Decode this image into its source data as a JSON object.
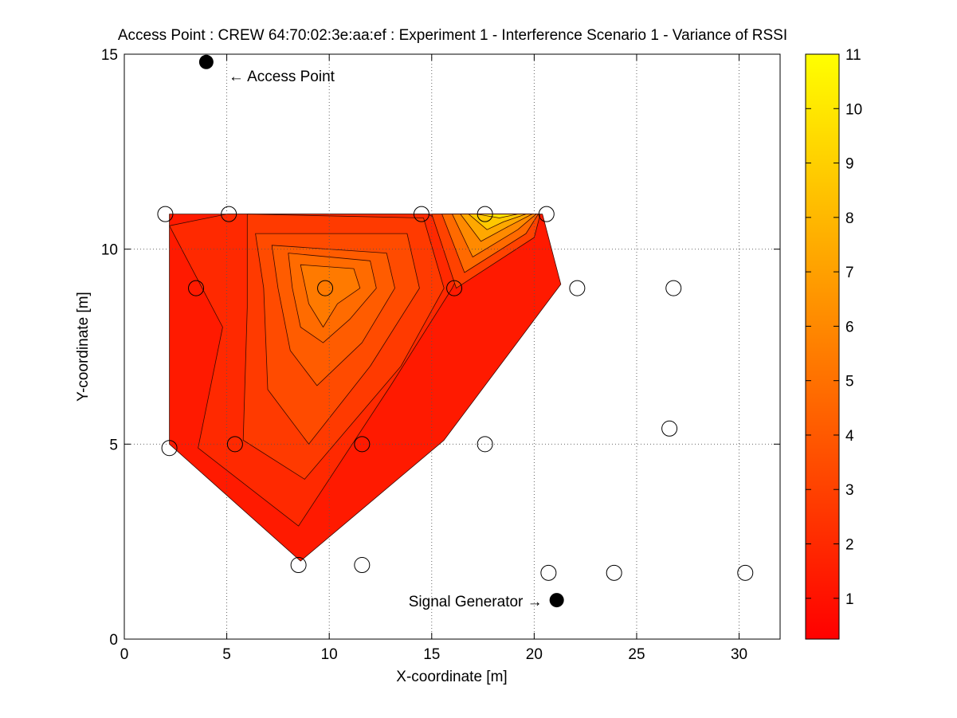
{
  "chart_data": {
    "type": "contour",
    "title": "Access Point : CREW 64:70:02:3e:aa:ef : Experiment 1 - Interference Scenario 1 - Variance of RSSI",
    "xlabel": "X-coordinate [m]",
    "ylabel": "Y-coordinate [m]",
    "xlim": [
      0,
      32
    ],
    "ylim": [
      0,
      15
    ],
    "x_ticks": [
      0,
      5,
      10,
      15,
      20,
      25,
      30
    ],
    "y_ticks": [
      0,
      5,
      10,
      15
    ],
    "grid": true,
    "colormap": "autumn",
    "colorbar": {
      "min": 0.25,
      "max": 11,
      "ticks": [
        1,
        2,
        3,
        4,
        5,
        6,
        7,
        8,
        9,
        10,
        11
      ],
      "low_color": "#ff0000",
      "high_color": "#ffff00"
    },
    "measurement_points": [
      {
        "x": 2.0,
        "y": 10.9
      },
      {
        "x": 5.1,
        "y": 10.9
      },
      {
        "x": 14.5,
        "y": 10.9
      },
      {
        "x": 17.6,
        "y": 10.9
      },
      {
        "x": 20.6,
        "y": 10.9
      },
      {
        "x": 3.5,
        "y": 9.0
      },
      {
        "x": 9.8,
        "y": 9.0
      },
      {
        "x": 16.1,
        "y": 9.0
      },
      {
        "x": 22.1,
        "y": 9.0
      },
      {
        "x": 26.8,
        "y": 9.0
      },
      {
        "x": 2.2,
        "y": 4.9
      },
      {
        "x": 5.4,
        "y": 5.0
      },
      {
        "x": 11.6,
        "y": 5.0
      },
      {
        "x": 17.6,
        "y": 5.0
      },
      {
        "x": 26.6,
        "y": 5.4
      },
      {
        "x": 8.5,
        "y": 1.9
      },
      {
        "x": 11.6,
        "y": 1.9
      },
      {
        "x": 20.7,
        "y": 1.7
      },
      {
        "x": 23.9,
        "y": 1.7
      },
      {
        "x": 30.3,
        "y": 1.7
      }
    ],
    "access_point": {
      "x": 4.0,
      "y": 14.8,
      "label": "← Access Point"
    },
    "signal_generator": {
      "x": 21.1,
      "y": 1.0,
      "label": "Signal Generator →"
    },
    "contour_regions": [
      {
        "level": 1.0,
        "color": "#ff1a00",
        "points": [
          [
            2.2,
            10.9
          ],
          [
            20.4,
            10.9
          ],
          [
            21.3,
            9.1
          ],
          [
            15.6,
            5.1
          ],
          [
            8.6,
            2.0
          ],
          [
            2.2,
            5.0
          ]
        ]
      },
      {
        "level": 1.8,
        "color": "#ff2900",
        "points": [
          [
            2.2,
            10.6
          ],
          [
            5.0,
            10.9
          ],
          [
            14.8,
            10.9
          ],
          [
            17.2,
            10.3
          ],
          [
            16.0,
            9.0
          ],
          [
            13.0,
            6.5
          ],
          [
            8.5,
            2.9
          ],
          [
            3.6,
            4.9
          ],
          [
            4.8,
            8.0
          ]
        ]
      },
      {
        "level": 2.6,
        "color": "#ff3a00",
        "points": [
          [
            6.0,
            10.9
          ],
          [
            14.6,
            10.8
          ],
          [
            15.6,
            9.0
          ],
          [
            13.5,
            7.0
          ],
          [
            8.8,
            4.1
          ],
          [
            5.8,
            5.1
          ],
          [
            6.0,
            8.5
          ]
        ]
      },
      {
        "level": 3.4,
        "color": "#ff4b00",
        "points": [
          [
            6.4,
            10.4
          ],
          [
            13.8,
            10.4
          ],
          [
            14.4,
            9.0
          ],
          [
            12.0,
            7.0
          ],
          [
            9.0,
            5.0
          ],
          [
            7.0,
            6.4
          ],
          [
            6.8,
            9.0
          ]
        ]
      },
      {
        "level": 4.2,
        "color": "#ff5c00",
        "points": [
          [
            7.2,
            10.1
          ],
          [
            12.8,
            9.9
          ],
          [
            13.2,
            9.0
          ],
          [
            11.6,
            7.6
          ],
          [
            9.4,
            6.5
          ],
          [
            8.1,
            7.4
          ],
          [
            7.5,
            9.0
          ]
        ]
      },
      {
        "level": 5.0,
        "color": "#ff6b00",
        "points": [
          [
            8.0,
            9.9
          ],
          [
            12.0,
            9.7
          ],
          [
            12.3,
            9.0
          ],
          [
            11.0,
            8.2
          ],
          [
            9.7,
            7.6
          ],
          [
            8.6,
            8.0
          ],
          [
            8.2,
            9.0
          ]
        ]
      },
      {
        "level": 5.8,
        "color": "#ff7a00",
        "points": [
          [
            8.6,
            9.6
          ],
          [
            11.2,
            9.5
          ],
          [
            11.5,
            9.0
          ],
          [
            10.4,
            8.6
          ],
          [
            9.7,
            8.0
          ],
          [
            9.0,
            8.6
          ]
        ]
      },
      {
        "level": 3.0,
        "color": "#ff4200",
        "points": [
          [
            15.0,
            10.9
          ],
          [
            20.3,
            10.9
          ],
          [
            20.0,
            10.3
          ],
          [
            16.2,
            9.0
          ]
        ]
      },
      {
        "level": 5.0,
        "color": "#ff6a00",
        "points": [
          [
            15.5,
            10.9
          ],
          [
            20.2,
            10.9
          ],
          [
            19.6,
            10.4
          ],
          [
            16.6,
            9.4
          ]
        ]
      },
      {
        "level": 6.5,
        "color": "#ff8a00",
        "points": [
          [
            16.0,
            10.9
          ],
          [
            20.1,
            10.9
          ],
          [
            19.2,
            10.5
          ],
          [
            17.0,
            9.8
          ]
        ]
      },
      {
        "level": 8.0,
        "color": "#ffa800",
        "points": [
          [
            16.4,
            10.9
          ],
          [
            19.9,
            10.9
          ],
          [
            18.8,
            10.6
          ],
          [
            17.4,
            10.2
          ]
        ]
      },
      {
        "level": 9.5,
        "color": "#ffc800",
        "points": [
          [
            16.8,
            10.9
          ],
          [
            19.6,
            10.9
          ],
          [
            18.5,
            10.7
          ],
          [
            17.7,
            10.5
          ]
        ]
      },
      {
        "level": 10.5,
        "color": "#ffe400",
        "points": [
          [
            17.2,
            10.9
          ],
          [
            19.2,
            10.9
          ],
          [
            18.3,
            10.8
          ]
        ]
      }
    ]
  }
}
